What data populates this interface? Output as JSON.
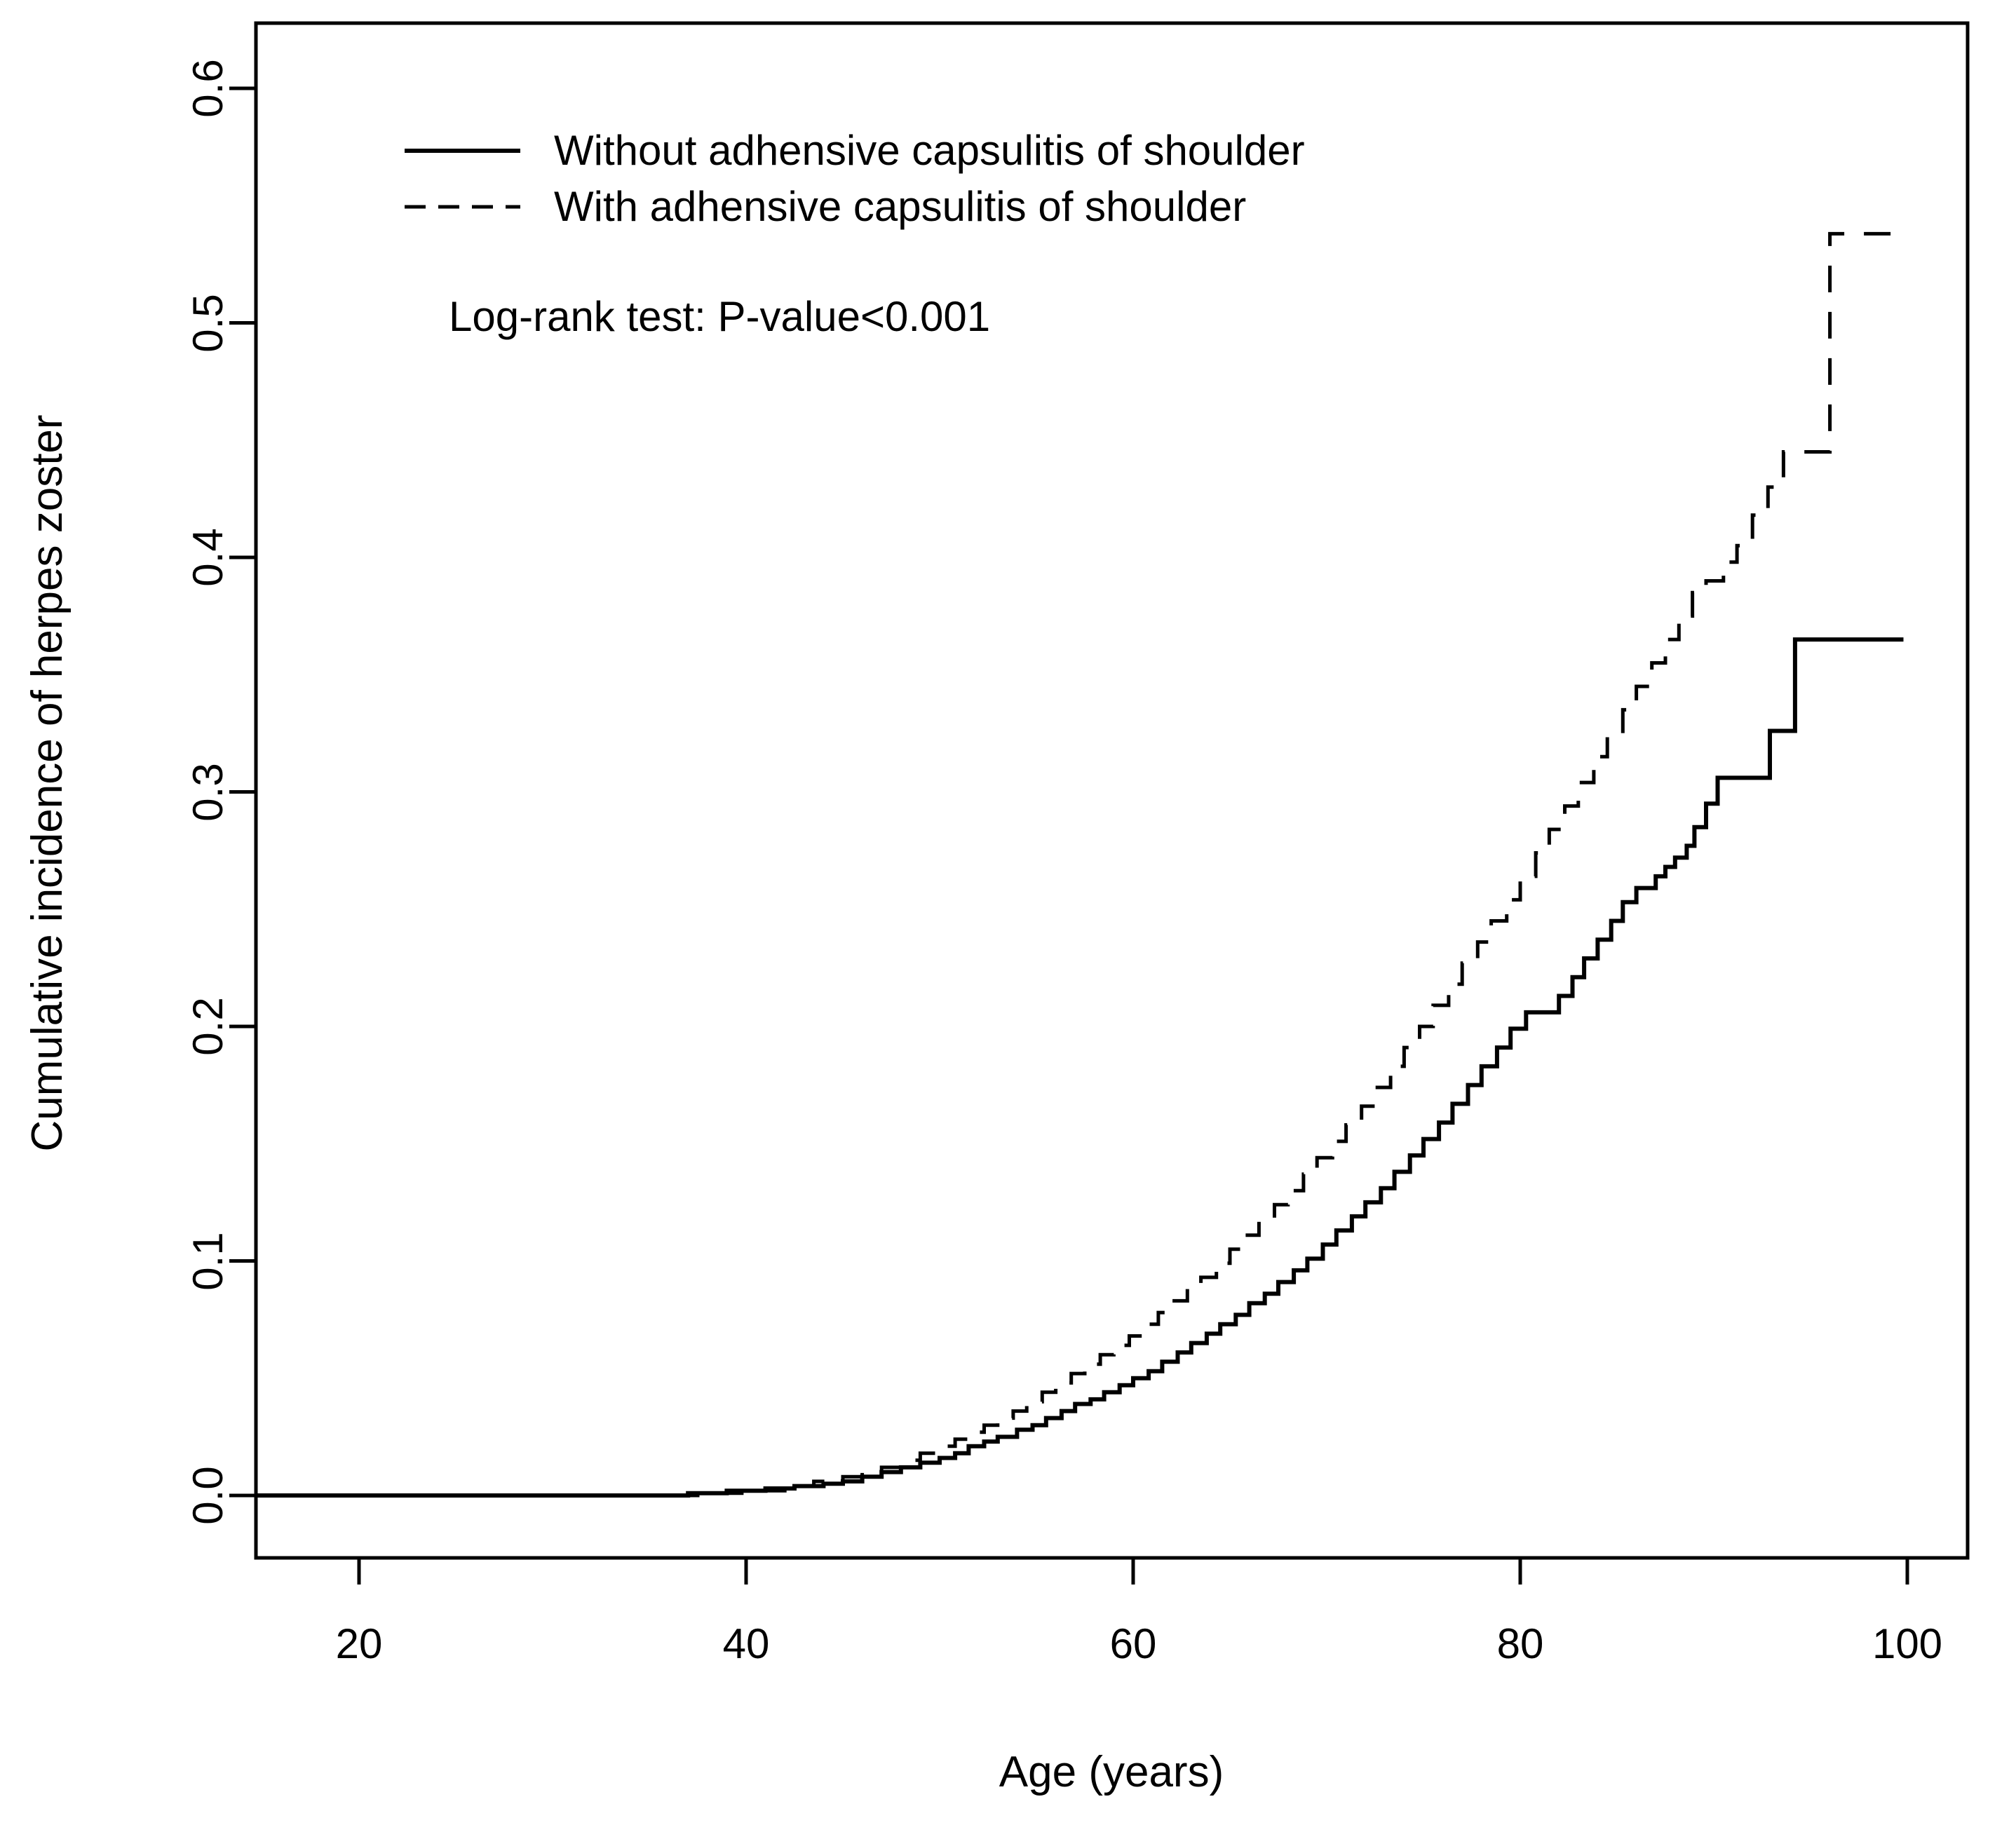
{
  "figure": {
    "background": "#ffffff",
    "ink": "#000000"
  },
  "chart_data": {
    "type": "line",
    "subtype": "kaplan-meier-step",
    "title": "",
    "xlabel": "Age (years)",
    "ylabel": "Cumulative incidence of herpes zoster",
    "xlim": [
      14.7,
      102.5
    ],
    "ylim": [
      -0.026,
      0.627
    ],
    "x_ticks": [
      "20",
      "40",
      "60",
      "80",
      "100"
    ],
    "x_tick_values": [
      20,
      40,
      60,
      80,
      100
    ],
    "y_ticks": [
      "0.0",
      "0.1",
      "0.2",
      "0.3",
      "0.4",
      "0.5",
      "0.6"
    ],
    "y_tick_values": [
      0.0,
      0.1,
      0.2,
      0.3,
      0.4,
      0.5,
      0.6
    ],
    "grid": false,
    "legend_position": "top-left-inside",
    "annotation": "Log-rank test: P-value<0.001",
    "series": [
      {
        "name": "Without adhensive capsulitis of shoulder",
        "line_style": "solid",
        "color": "#000000",
        "start_age": 14.7,
        "end_age": 99.8,
        "points": [
          [
            37,
            0.001
          ],
          [
            39,
            0.002
          ],
          [
            41,
            0.003
          ],
          [
            42.5,
            0.004
          ],
          [
            44,
            0.005
          ],
          [
            45,
            0.006
          ],
          [
            46,
            0.008
          ],
          [
            47,
            0.01
          ],
          [
            48,
            0.012
          ],
          [
            49,
            0.014
          ],
          [
            50,
            0.016
          ],
          [
            50.8,
            0.018
          ],
          [
            51.5,
            0.021
          ],
          [
            52.3,
            0.023
          ],
          [
            53,
            0.025
          ],
          [
            54,
            0.028
          ],
          [
            54.8,
            0.03
          ],
          [
            55.5,
            0.033
          ],
          [
            56.3,
            0.036
          ],
          [
            57,
            0.039
          ],
          [
            57.8,
            0.041
          ],
          [
            58.5,
            0.044
          ],
          [
            59.3,
            0.047
          ],
          [
            60,
            0.05
          ],
          [
            60.8,
            0.053
          ],
          [
            61.5,
            0.057
          ],
          [
            62.3,
            0.061
          ],
          [
            63,
            0.065
          ],
          [
            63.8,
            0.069
          ],
          [
            64.5,
            0.073
          ],
          [
            65.3,
            0.077
          ],
          [
            66,
            0.082
          ],
          [
            66.8,
            0.086
          ],
          [
            67.5,
            0.091
          ],
          [
            68.3,
            0.096
          ],
          [
            69,
            0.101
          ],
          [
            69.8,
            0.107
          ],
          [
            70.5,
            0.113
          ],
          [
            71.3,
            0.119
          ],
          [
            72,
            0.125
          ],
          [
            72.8,
            0.131
          ],
          [
            73.5,
            0.138
          ],
          [
            74.3,
            0.145
          ],
          [
            75,
            0.152
          ],
          [
            75.8,
            0.159
          ],
          [
            76.5,
            0.167
          ],
          [
            77.3,
            0.175
          ],
          [
            78,
            0.183
          ],
          [
            78.8,
            0.191
          ],
          [
            79.5,
            0.199
          ],
          [
            80.3,
            0.206
          ],
          [
            82,
            0.213
          ],
          [
            82.7,
            0.221
          ],
          [
            83.3,
            0.229
          ],
          [
            84,
            0.237
          ],
          [
            84.7,
            0.245
          ],
          [
            85.3,
            0.253
          ],
          [
            86,
            0.259
          ],
          [
            87,
            0.264
          ],
          [
            87.5,
            0.268
          ],
          [
            88,
            0.272
          ],
          [
            88.6,
            0.277
          ],
          [
            89,
            0.285
          ],
          [
            89.6,
            0.295
          ],
          [
            90.2,
            0.306
          ],
          [
            92.9,
            0.326
          ],
          [
            94.2,
            0.365
          ]
        ]
      },
      {
        "name": "With adhensive capsulitis of shoulder",
        "line_style": "dashed",
        "color": "#000000",
        "start_age": 14.7,
        "end_age": 99.4,
        "points": [
          [
            37.5,
            0.001
          ],
          [
            40,
            0.002
          ],
          [
            42,
            0.004
          ],
          [
            43.5,
            0.006
          ],
          [
            45,
            0.008
          ],
          [
            46,
            0.01
          ],
          [
            47,
            0.012
          ],
          [
            48,
            0.015
          ],
          [
            49,
            0.018
          ],
          [
            50,
            0.021
          ],
          [
            50.8,
            0.024
          ],
          [
            51.5,
            0.027
          ],
          [
            52.3,
            0.03
          ],
          [
            53,
            0.033
          ],
          [
            53.8,
            0.036
          ],
          [
            54.5,
            0.04
          ],
          [
            55.3,
            0.044
          ],
          [
            56,
            0.048
          ],
          [
            56.8,
            0.052
          ],
          [
            57.5,
            0.056
          ],
          [
            58.3,
            0.06
          ],
          [
            59,
            0.064
          ],
          [
            59.8,
            0.068
          ],
          [
            60.5,
            0.073
          ],
          [
            61.3,
            0.078
          ],
          [
            62,
            0.083
          ],
          [
            62.8,
            0.088
          ],
          [
            63.5,
            0.093
          ],
          [
            64.3,
            0.099
          ],
          [
            65,
            0.105
          ],
          [
            65.8,
            0.111
          ],
          [
            66.5,
            0.117
          ],
          [
            67.3,
            0.124
          ],
          [
            68,
            0.13
          ],
          [
            68.8,
            0.137
          ],
          [
            69.5,
            0.144
          ],
          [
            70.3,
            0.151
          ],
          [
            71,
            0.158
          ],
          [
            71.8,
            0.166
          ],
          [
            72.5,
            0.174
          ],
          [
            73.3,
            0.183
          ],
          [
            74,
            0.191
          ],
          [
            74.8,
            0.2
          ],
          [
            75.5,
            0.209
          ],
          [
            76.3,
            0.218
          ],
          [
            77,
            0.227
          ],
          [
            77.8,
            0.236
          ],
          [
            78.5,
            0.245
          ],
          [
            79.3,
            0.254
          ],
          [
            80,
            0.264
          ],
          [
            80.8,
            0.274
          ],
          [
            81.5,
            0.284
          ],
          [
            82.3,
            0.294
          ],
          [
            83,
            0.304
          ],
          [
            83.8,
            0.315
          ],
          [
            84.5,
            0.325
          ],
          [
            85.3,
            0.335
          ],
          [
            86,
            0.345
          ],
          [
            86.8,
            0.355
          ],
          [
            87.5,
            0.365
          ],
          [
            88.2,
            0.375
          ],
          [
            88.9,
            0.385
          ],
          [
            89.6,
            0.39
          ],
          [
            90.5,
            0.398
          ],
          [
            91.2,
            0.405
          ],
          [
            92.0,
            0.418
          ],
          [
            92.8,
            0.43
          ],
          [
            93.6,
            0.445
          ],
          [
            96.0,
            0.538
          ]
        ]
      }
    ]
  }
}
